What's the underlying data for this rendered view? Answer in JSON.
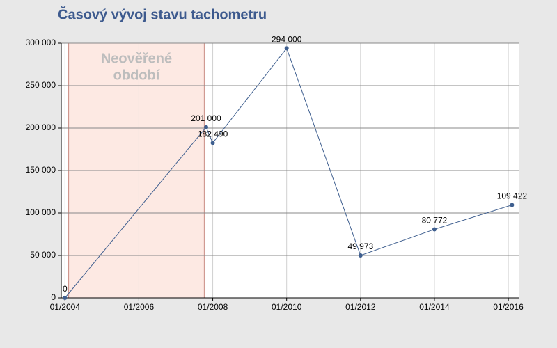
{
  "chart_data": {
    "type": "line",
    "title": "Časový vývoj stavu tachometru",
    "region_label": [
      "Neověřené",
      "období"
    ],
    "unverified_range": [
      2004.1,
      2007.77
    ],
    "x": [
      2004.0,
      2007.82,
      2008.0,
      2010.0,
      2012.0,
      2014.0,
      2016.1
    ],
    "series": [
      {
        "color": "#3f5f8f",
        "unverified_color": "#cc1f1f",
        "values": [
          0,
          201000,
          182490,
          294000,
          49973,
          80772,
          109422
        ],
        "value_labels": [
          "0",
          "201 000",
          "182 490",
          "294 000",
          "49 973",
          "80 772",
          "109 422"
        ]
      }
    ],
    "xlim": [
      2003.9,
      2016.3
    ],
    "xticks": [
      {
        "value": 2004,
        "label": "01/2004"
      },
      {
        "value": 2006,
        "label": "01/2006"
      },
      {
        "value": 2008,
        "label": "01/2008"
      },
      {
        "value": 2010,
        "label": "01/2010"
      },
      {
        "value": 2012,
        "label": "01/2012"
      },
      {
        "value": 2014,
        "label": "01/2014"
      },
      {
        "value": 2016,
        "label": "01/2016"
      }
    ],
    "ylim": [
      0,
      300000
    ],
    "yticks": [
      0,
      {
        "value": 50000,
        "label": "50 000"
      },
      {
        "value": 100000,
        "label": "100 000"
      },
      {
        "value": 150000,
        "label": "150 000"
      },
      {
        "value": 200000,
        "label": "200 000"
      },
      {
        "value": 250000,
        "label": "250 000"
      },
      {
        "value": 300000,
        "label": "300 000"
      }
    ],
    "grid": true
  }
}
